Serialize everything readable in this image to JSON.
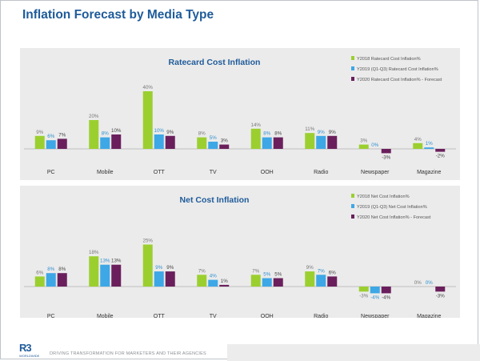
{
  "page": {
    "title": "Inflation Forecast by Media Type",
    "logo_text": "R3",
    "logo_subtext": "WORLDWIDE",
    "tagline": "DRIVING TRANSFORMATION FOR MARKETERS AND THEIR AGENCIES"
  },
  "colors": {
    "series": [
      "#9bcf2f",
      "#3ea7e6",
      "#6a1f5c"
    ],
    "title": "#1f5b9a",
    "panel_bg": "#ebebeb"
  },
  "chart_data": [
    {
      "type": "bar",
      "title": "Ratecard Cost Inflation",
      "legend_position": "top-right",
      "categories": [
        "PC",
        "Mobile",
        "OTT",
        "TV",
        "OOH",
        "Radio",
        "Newspaper",
        "Magazine"
      ],
      "series": [
        {
          "name": "Y2018 Ratecard Cost Inflation%",
          "values": [
            9,
            20,
            40,
            8,
            14,
            11,
            3,
            4
          ]
        },
        {
          "name": "Y2019 (Q1-Q3) Ratecard Cost Inflation%",
          "values": [
            6,
            8,
            10,
            5,
            8,
            9,
            0,
            1
          ]
        },
        {
          "name": "Y2020 Ratecard Cost Inflation% - Forecast",
          "values": [
            7,
            10,
            9,
            3,
            8,
            9,
            -3,
            -2
          ]
        }
      ],
      "value_labels": [
        [
          "9%",
          "20%",
          "40%",
          "8%",
          "14%",
          "11%",
          "3%",
          "4%"
        ],
        [
          "6%",
          "8%",
          "10%",
          "5%",
          "8%",
          "9%",
          "0%",
          "1%"
        ],
        [
          "7%",
          "10%",
          "9%",
          "3%",
          "8%",
          "9%",
          "-3%",
          "-2%"
        ]
      ],
      "grid": false
    },
    {
      "type": "bar",
      "title": "Net Cost Inflation",
      "legend_position": "top-right",
      "categories": [
        "PC",
        "Mobile",
        "OTT",
        "TV",
        "OOH",
        "Radio",
        "Newspaper",
        "Magazine"
      ],
      "series": [
        {
          "name": "Y2018 Net Cost Inflation%",
          "values": [
            6,
            18,
            25,
            7,
            7,
            9,
            -3,
            0
          ]
        },
        {
          "name": "Y2019 (Q1-Q3) Net Cost Inflation%",
          "values": [
            8,
            13,
            9,
            4,
            5,
            7,
            -4,
            0
          ]
        },
        {
          "name": "Y2020 Net Cost Inflation% - Forecast",
          "values": [
            8,
            13,
            9,
            1,
            5,
            6,
            -4,
            -3
          ]
        }
      ],
      "value_labels": [
        [
          "6%",
          "18%",
          "25%",
          "7%",
          "7%",
          "9%",
          "-3%",
          "0%"
        ],
        [
          "8%",
          "13%",
          "9%",
          "4%",
          "5%",
          "7%",
          "-4%",
          "0%"
        ],
        [
          "8%",
          "13%",
          "9%",
          "1%",
          "5%",
          "6%",
          "-4%",
          "-3%"
        ]
      ],
      "grid": false
    }
  ]
}
